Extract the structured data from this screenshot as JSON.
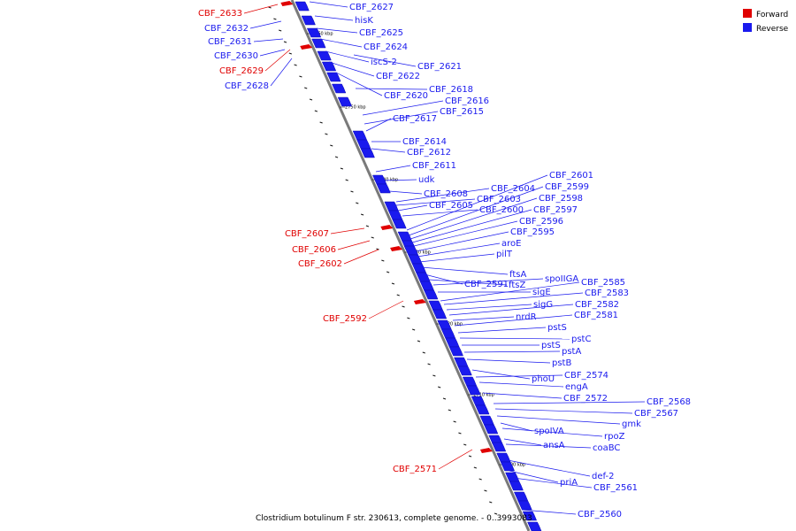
{
  "caption": "Clostridium botulinum F str. 230613, complete genome. - 0..3993083",
  "legend": [
    {
      "label": "Forward",
      "color": "#e00000"
    },
    {
      "label": "Reverse",
      "color": "#1a1aee"
    }
  ],
  "ticks": [
    "2760 kbp",
    "2750 kbp",
    "2740 kbp",
    "2730 kbp",
    "2720 kbp",
    "2710 kbp",
    "2700 kbp"
  ],
  "reverse_labels": [
    "CBF_2627",
    "hisK",
    "CBF_2625",
    "CBF_2624",
    "iscS-2",
    "CBF_2621",
    "CBF_2622",
    "CBF_2620",
    "CBF_2618",
    "CBF_2616",
    "CBF_2615",
    "CBF_2617",
    "CBF_2614",
    "CBF_2612",
    "CBF_2611",
    "udk",
    "CBF_2608",
    "CBF_2604",
    "CBF_2603",
    "CBF_2605",
    "CBF_2600",
    "CBF_2601",
    "CBF_2599",
    "CBF_2598",
    "CBF_2597",
    "CBF_2596",
    "CBF_2595",
    "aroE",
    "pilT",
    "ftsA",
    "CBF_2591",
    "ftsZ",
    "spoIIGA",
    "sigE",
    "CBF_2585",
    "CBF_2583",
    "sigG",
    "CBF_2582",
    "nrdR",
    "CBF_2581",
    "pstS",
    "pstC",
    "pstS",
    "pstA",
    "pstB",
    "phoU",
    "CBF_2574",
    "engA",
    "CBF_2572",
    "CBF_2568",
    "CBF_2567",
    "gmk",
    "spoIVA",
    "rpoZ",
    "ansA",
    "coaBC",
    "def-2",
    "priA",
    "CBF_2561",
    "CBF_2560"
  ],
  "reverse_left_labels": [
    "CBF_2632",
    "CBF_2631",
    "CBF_2630",
    "CBF_2628"
  ],
  "forward_labels": [
    "CBF_2633",
    "CBF_2629",
    "CBF_2607",
    "CBF_2606",
    "CBF_2602",
    "CBF_2592",
    "CBF_2571"
  ]
}
